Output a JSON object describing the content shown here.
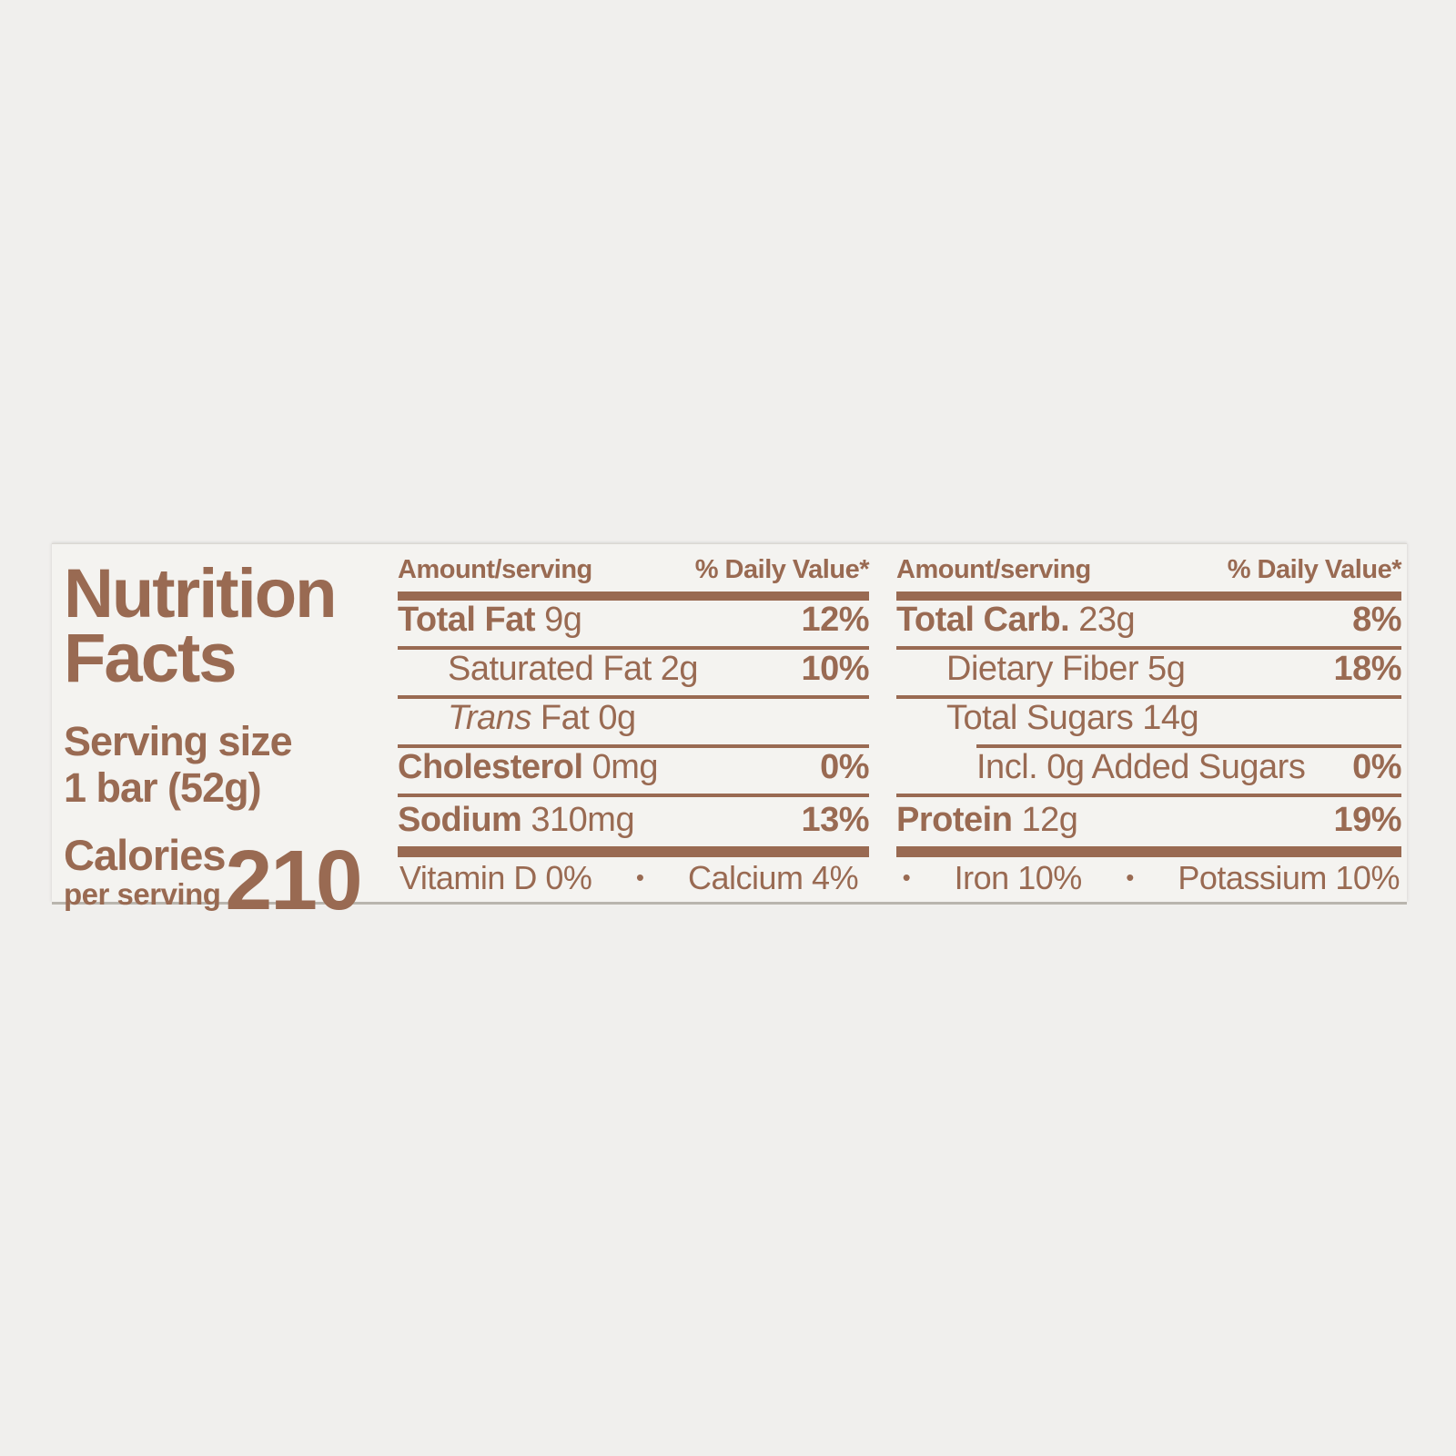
{
  "colors": {
    "text_brown": "#996a52",
    "label_background": "#f4f3f0",
    "page_background": "#f0efed"
  },
  "label": {
    "title_line1": "Nutrition",
    "title_line2": "Facts",
    "serving": {
      "label": "Serving size",
      "value": "1 bar (52g)"
    },
    "calories": {
      "label": "Calories",
      "sublabel": "per serving",
      "value": "210"
    },
    "columns": [
      {
        "header_amount": "Amount/serving",
        "header_dv": "% Daily Value*",
        "rows": [
          {
            "bold": "Total Fat",
            "text": " 9g",
            "dv": "12%"
          },
          {
            "text": "Saturated Fat 2g",
            "dv": "10%"
          },
          {
            "italic": "Trans",
            "text": " Fat 0g",
            "dv": ""
          },
          {
            "bold": "Cholesterol",
            "text": " 0mg",
            "dv": "0%"
          },
          {
            "bold": "Sodium",
            "text": " 310mg",
            "dv": "13%"
          }
        ]
      },
      {
        "header_amount": "Amount/serving",
        "header_dv": "% Daily Value*",
        "rows": [
          {
            "bold": "Total Carb.",
            "text": " 23g",
            "dv": "8%"
          },
          {
            "text": "Dietary Fiber 5g",
            "dv": "18%"
          },
          {
            "text": "Total Sugars 14g",
            "dv": ""
          },
          {
            "text": "Incl. 0g Added Sugars",
            "dv": "0%"
          },
          {
            "bold": "Protein",
            "text": " 12g",
            "dv": "19%"
          }
        ]
      }
    ],
    "micronutrients": {
      "separator": "•",
      "items": [
        "Vitamin D 0%",
        "Calcium 4%",
        "Iron 10%",
        "Potassium 10%"
      ]
    }
  }
}
